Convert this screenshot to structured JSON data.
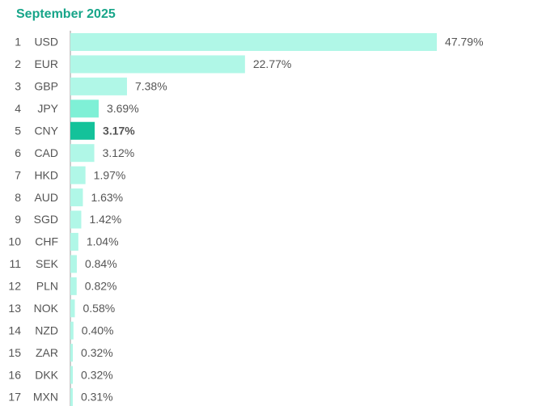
{
  "chart_data": {
    "type": "hbar",
    "title": "September 2025",
    "ranks": [
      1,
      2,
      3,
      4,
      5,
      6,
      7,
      8,
      9,
      10,
      11,
      12,
      13,
      14,
      15,
      16,
      17
    ],
    "categories": [
      "USD",
      "EUR",
      "GBP",
      "JPY",
      "CNY",
      "CAD",
      "HKD",
      "AUD",
      "SGD",
      "CHF",
      "SEK",
      "PLN",
      "NOK",
      "NZD",
      "ZAR",
      "DKK",
      "MXN"
    ],
    "values": [
      47.79,
      22.77,
      7.38,
      3.69,
      3.17,
      3.12,
      1.97,
      1.63,
      1.42,
      1.04,
      0.84,
      0.82,
      0.58,
      0.4,
      0.32,
      0.32,
      0.31
    ],
    "value_labels": [
      "47.79%",
      "22.77%",
      "7.38%",
      "3.69%",
      "3.17%",
      "3.12%",
      "1.97%",
      "1.63%",
      "1.42%",
      "1.04%",
      "0.84%",
      "0.82%",
      "0.58%",
      "0.40%",
      "0.32%",
      "0.32%",
      "0.31%"
    ],
    "colors": [
      "#b0f7e7",
      "#b0f7e7",
      "#b0f7e7",
      "#7ff0d6",
      "#14c29a",
      "#b0f7e7",
      "#b0f7e7",
      "#b0f7e7",
      "#b0f7e7",
      "#b0f7e7",
      "#b0f7e7",
      "#b0f7e7",
      "#b0f7e7",
      "#b0f7e7",
      "#b0f7e7",
      "#b0f7e7",
      "#b0f7e7"
    ],
    "bold_labels": [
      false,
      false,
      false,
      false,
      true,
      false,
      false,
      false,
      false,
      false,
      false,
      false,
      false,
      false,
      false,
      false,
      false
    ],
    "xlim": [
      0,
      50
    ]
  }
}
